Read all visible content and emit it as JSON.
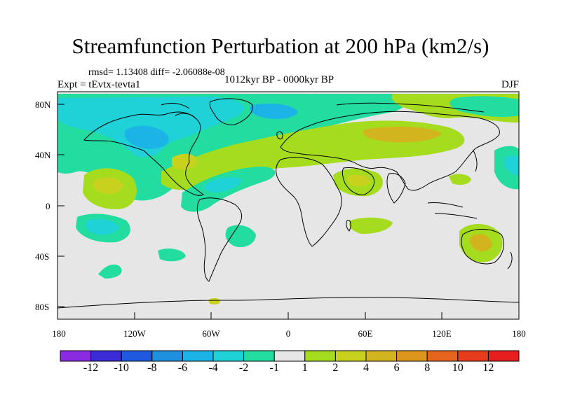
{
  "title": "Streamfunction Perturbation at 200 hPa (km2/s)",
  "stats": "rmsd= 1.13408 diff= -2.06088e-08",
  "left_label": "Expt = tEvtx-tevta1",
  "center_label": "1012kyr BP - 0000kyr BP",
  "right_label": "DJF",
  "lat_labels": [
    "80N",
    "40N",
    "0",
    "40S",
    "80S"
  ],
  "lon_labels": [
    "180",
    "120W",
    "60W",
    "0",
    "60E",
    "120E",
    "180"
  ],
  "colorbar": {
    "labels": [
      "-12",
      "-10",
      "-8",
      "-6",
      "-4",
      "-2",
      "-1",
      "1",
      "2",
      "4",
      "6",
      "8",
      "10",
      "12"
    ],
    "colors": [
      "#8a2be2",
      "#3a2bd6",
      "#1e5adf",
      "#1e90e0",
      "#1cb4e6",
      "#1fd2d8",
      "#22dca0",
      "#e6e6e6",
      "#a6dc1e",
      "#c8d21e",
      "#d2b41e",
      "#dc961e",
      "#e6641e",
      "#e63c1e",
      "#e61e1e"
    ]
  },
  "colors": {
    "background": "#e6e6e6",
    "neg_light": "#22dca0",
    "neg_mid": "#1fd2d8",
    "neg_strong": "#1cb4e6",
    "pos_light": "#a6dc1e",
    "pos_mid": "#c8d21e",
    "pos_strong": "#d2b41e"
  }
}
